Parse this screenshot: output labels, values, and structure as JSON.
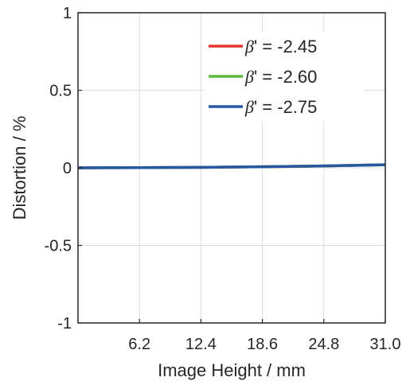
{
  "chart_data": {
    "type": "line",
    "title": "",
    "xlabel": "Image Height / mm",
    "ylabel": "Distortion / %",
    "xlim": [
      0,
      31.0
    ],
    "ylim": [
      -1,
      1
    ],
    "xticks": [
      6.2,
      12.4,
      18.6,
      24.8,
      31.0
    ],
    "xtick_labels": [
      "6.2",
      "12.4",
      "18.6",
      "24.8",
      "31.0"
    ],
    "yticks": [
      1,
      0.5,
      0,
      -0.5,
      -1
    ],
    "ytick_labels": [
      "1",
      "0.5",
      "0",
      "-0.5",
      "-1"
    ],
    "grid": true,
    "legend_position": "top-right",
    "x": [
      0,
      6.2,
      12.4,
      18.6,
      24.8,
      31.0
    ],
    "series": [
      {
        "name": "β' = -2.45",
        "legend_prefix": "β",
        "legend_suffix": "' = -2.45",
        "color": "#e8312a",
        "values": [
          0,
          0.001,
          0.003,
          0.007,
          0.012,
          0.02
        ]
      },
      {
        "name": "β' = -2.60",
        "legend_prefix": "β",
        "legend_suffix": "' = -2.60",
        "color": "#5cb83c",
        "values": [
          0,
          0.001,
          0.003,
          0.007,
          0.012,
          0.02
        ]
      },
      {
        "name": "β' = -2.75",
        "legend_prefix": "β",
        "legend_suffix": "' = -2.75",
        "color": "#2557a3",
        "values": [
          0,
          0.001,
          0.003,
          0.007,
          0.012,
          0.02
        ]
      }
    ]
  }
}
